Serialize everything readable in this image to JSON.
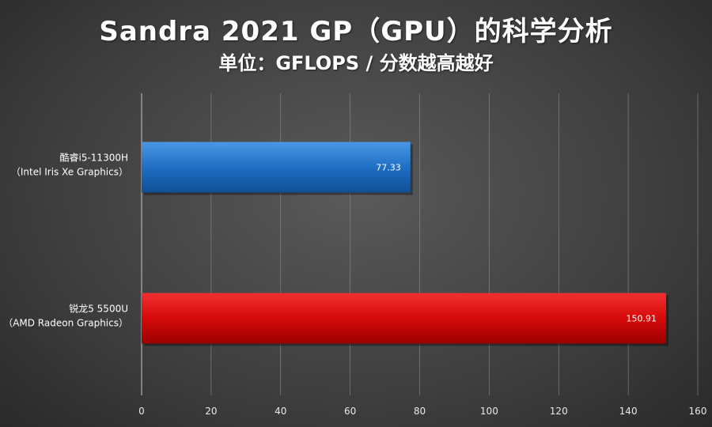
{
  "header": {
    "title": "Sandra 2021 GP（GPU）的科学分析",
    "subtitle": "单位：GFLOPS / 分数越高越好"
  },
  "chart_data": {
    "type": "bar",
    "orientation": "horizontal",
    "title": "Sandra 2021 GP（GPU）的科学分析",
    "subtitle": "单位：GFLOPS / 分数越高越好",
    "categories": [
      [
        "酷睿i5-11300H",
        "（Intel Iris Xe Graphics）"
      ],
      [
        "锐龙5 5500U",
        "（AMD Radeon Graphics）"
      ]
    ],
    "values": [
      77.33,
      150.91
    ],
    "data_labels": [
      "77.33",
      "150.91"
    ],
    "bar_colors": [
      "#1f6fc4",
      "#d60a0a"
    ],
    "xlim": [
      0,
      160
    ],
    "xticks": [
      0,
      20,
      40,
      60,
      80,
      100,
      120,
      140,
      160
    ],
    "grid": true,
    "legend": "none"
  },
  "colors": {
    "background": "#3f3f3f",
    "gridline": "#8a8a8a",
    "text": "#ffffff"
  }
}
